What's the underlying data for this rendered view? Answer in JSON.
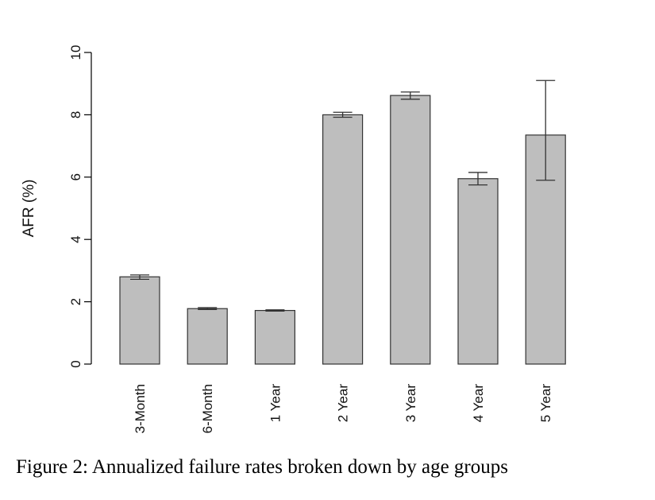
{
  "caption": "Figure 2:  Annualized failure rates broken down by age groups",
  "chart_data": {
    "type": "bar",
    "title": "",
    "xlabel": "",
    "ylabel": "AFR (%)",
    "ylim": [
      0,
      10
    ],
    "yticks": [
      "0",
      "2",
      "4",
      "6",
      "8",
      "10"
    ],
    "categories": [
      "3-Month",
      "6-Month",
      "1 Year",
      "2 Year",
      "3 Year",
      "4 Year",
      "5 Year"
    ],
    "values": [
      2.8,
      1.78,
      1.72,
      8.0,
      8.62,
      5.95,
      7.35
    ],
    "error_low": [
      2.72,
      1.75,
      1.7,
      7.92,
      8.5,
      5.75,
      5.9
    ],
    "error_high": [
      2.86,
      1.81,
      1.74,
      8.08,
      8.73,
      6.15,
      9.1
    ],
    "grid": false,
    "bar_color": "#bebebe"
  }
}
